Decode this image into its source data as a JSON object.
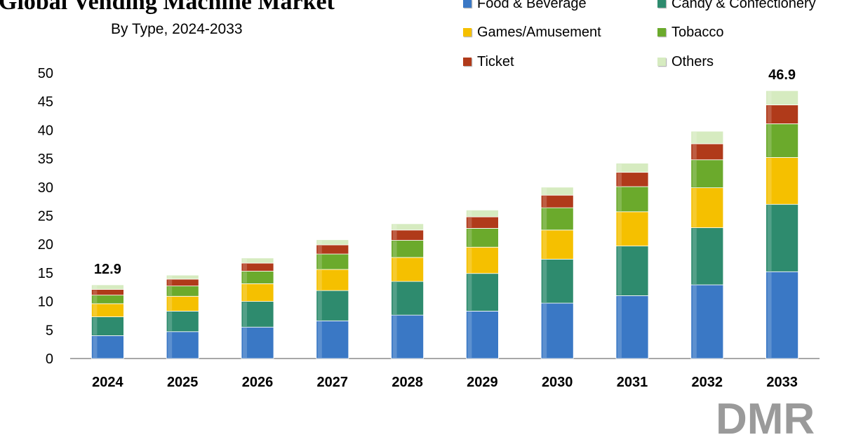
{
  "chart_data": {
    "type": "bar",
    "stacked": true,
    "title": "Global Vending Machine Market",
    "subtitle": "By Type, 2024-2033",
    "categories": [
      "2024",
      "2025",
      "2026",
      "2027",
      "2028",
      "2029",
      "2030",
      "2031",
      "2032",
      "2033"
    ],
    "ylim": [
      0,
      50
    ],
    "yticks": [
      0,
      5,
      10,
      15,
      20,
      25,
      30,
      35,
      40,
      45,
      50
    ],
    "grid": false,
    "legend_position": "top-right",
    "series": [
      {
        "name": "Food & Beverage",
        "color": "#3A78C5",
        "values": [
          4.0,
          4.7,
          5.5,
          6.6,
          7.6,
          8.3,
          9.7,
          11.0,
          12.9,
          15.2
        ]
      },
      {
        "name": "Candy & Confectionery",
        "color": "#2E8B6E",
        "values": [
          3.3,
          3.6,
          4.5,
          5.3,
          5.9,
          6.6,
          7.7,
          8.7,
          10.0,
          11.8
        ]
      },
      {
        "name": "Games/Amusement",
        "color": "#F5C000",
        "values": [
          2.3,
          2.6,
          3.1,
          3.7,
          4.2,
          4.6,
          5.1,
          6.0,
          7.0,
          8.2
        ]
      },
      {
        "name": "Tobacco",
        "color": "#6BAA2C",
        "values": [
          1.5,
          1.8,
          2.2,
          2.7,
          3.0,
          3.3,
          3.9,
          4.4,
          4.9,
          5.9
        ]
      },
      {
        "name": "Ticket",
        "color": "#B03A1A",
        "values": [
          1.0,
          1.2,
          1.4,
          1.6,
          1.8,
          2.0,
          2.2,
          2.5,
          2.8,
          3.3
        ]
      },
      {
        "name": "Others",
        "color": "#D6EBC0",
        "values": [
          0.8,
          0.7,
          0.9,
          0.9,
          1.1,
          1.2,
          1.4,
          1.6,
          2.2,
          2.5
        ]
      }
    ],
    "annotations": [
      {
        "category": "2024",
        "text": "12.9"
      },
      {
        "category": "2033",
        "text": "46.9"
      }
    ]
  },
  "logo": {
    "text": "DMR"
  }
}
